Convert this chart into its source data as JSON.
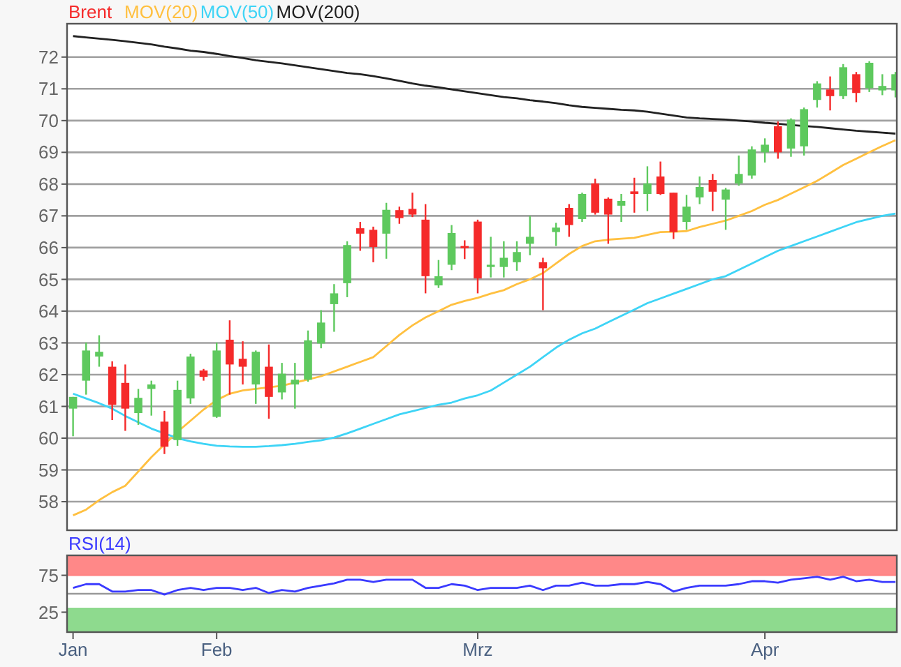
{
  "chart_data": [
    {
      "type": "candlestick",
      "categories": [
        null,
        null,
        null,
        null,
        null,
        null,
        null,
        null,
        null,
        null,
        null,
        null,
        null,
        null,
        null,
        null,
        null,
        null,
        null,
        null,
        null,
        null,
        null,
        null,
        null,
        null,
        null,
        null,
        null,
        null,
        null,
        null,
        null,
        null,
        null,
        null,
        null,
        null,
        null,
        null,
        null,
        null,
        null,
        null,
        null,
        null,
        null,
        null,
        null,
        null,
        null,
        null,
        null,
        null,
        null,
        null,
        null,
        null,
        null,
        null,
        null,
        null,
        null,
        null
      ],
      "ylim": [
        57.1,
        73.05
      ],
      "yticks": [
        58,
        59,
        60,
        61,
        62,
        63,
        64,
        65,
        66,
        67,
        68,
        69,
        70,
        71,
        72
      ],
      "grid": "y",
      "tick_labels": "y",
      "legend": "top left",
      "series": [
        {
          "name": "Brent",
          "ohlc": [
            [
              60.93,
              61.3,
              60.06,
              61.3
            ],
            [
              61.81,
              63.01,
              61.37,
              62.76
            ],
            [
              62.57,
              63.24,
              62.25,
              62.72
            ],
            [
              62.25,
              62.42,
              60.57,
              61.05
            ],
            [
              61.74,
              62.32,
              60.23,
              60.93
            ],
            [
              60.79,
              61.55,
              60.42,
              61.27
            ],
            [
              61.55,
              61.81,
              60.71,
              61.69
            ],
            [
              60.52,
              60.86,
              59.5,
              59.73
            ],
            [
              59.94,
              61.81,
              59.76,
              61.52
            ],
            [
              61.25,
              62.66,
              61.08,
              62.57
            ],
            [
              62.13,
              62.18,
              61.81,
              61.93
            ],
            [
              60.67,
              63.01,
              60.64,
              62.76
            ],
            [
              63.1,
              63.71,
              61.37,
              62.32
            ],
            [
              62.5,
              63.05,
              61.69,
              62.25
            ],
            [
              61.69,
              62.76,
              61.08,
              62.72
            ],
            [
              62.25,
              62.95,
              60.61,
              61.3
            ],
            [
              61.44,
              62.37,
              61.22,
              62.03
            ],
            [
              61.69,
              62.37,
              60.93,
              61.84
            ],
            [
              61.84,
              63.39,
              61.78,
              63.08
            ],
            [
              62.98,
              64.03,
              62.83,
              63.64
            ],
            [
              64.22,
              64.85,
              63.35,
              64.56
            ],
            [
              64.88,
              66.2,
              64.44,
              66.08
            ],
            [
              66.61,
              66.81,
              65.9,
              66.44
            ],
            [
              66.56,
              66.66,
              65.54,
              66.02
            ],
            [
              66.44,
              67.41,
              65.65,
              67.19
            ],
            [
              67.18,
              67.29,
              66.75,
              66.93
            ],
            [
              67.22,
              67.73,
              66.96,
              67.04
            ],
            [
              66.88,
              67.37,
              64.56,
              65.1
            ],
            [
              64.81,
              65.61,
              64.73,
              65.1
            ],
            [
              65.46,
              66.71,
              65.29,
              66.46
            ],
            [
              66.05,
              66.23,
              65.64,
              65.98
            ],
            [
              66.82,
              66.88,
              64.56,
              65.03
            ],
            [
              65.39,
              66.34,
              65.06,
              65.46
            ],
            [
              65.39,
              66.2,
              65.06,
              65.68
            ],
            [
              65.54,
              66.2,
              65.27,
              65.86
            ],
            [
              66.12,
              67.0,
              65.76,
              66.34
            ],
            [
              65.54,
              65.68,
              64.03,
              65.35
            ],
            [
              66.49,
              66.78,
              66.05,
              66.63
            ],
            [
              67.25,
              67.37,
              66.34,
              66.71
            ],
            [
              66.9,
              67.73,
              66.81,
              67.69
            ],
            [
              68.02,
              68.17,
              67.04,
              67.1
            ],
            [
              67.54,
              67.58,
              66.12,
              67.04
            ],
            [
              67.32,
              67.69,
              66.81,
              67.47
            ],
            [
              67.77,
              68.2,
              67.1,
              67.69
            ],
            [
              67.69,
              68.56,
              67.15,
              68.02
            ],
            [
              68.24,
              68.71,
              67.66,
              67.69
            ],
            [
              67.73,
              67.73,
              66.27,
              66.49
            ],
            [
              66.81,
              67.66,
              66.56,
              67.29
            ],
            [
              67.58,
              68.24,
              67.37,
              67.91
            ],
            [
              68.13,
              68.32,
              67.15,
              67.76
            ],
            [
              67.51,
              67.88,
              66.56,
              67.83
            ],
            [
              68.02,
              68.9,
              67.95,
              68.32
            ],
            [
              68.27,
              69.19,
              68.17,
              69.09
            ],
            [
              69.0,
              69.44,
              68.68,
              69.24
            ],
            [
              69.82,
              69.97,
              68.8,
              69.0
            ],
            [
              69.12,
              70.07,
              68.86,
              70.03
            ],
            [
              69.19,
              70.41,
              68.9,
              70.36
            ],
            [
              70.65,
              71.24,
              70.41,
              71.17
            ],
            [
              70.98,
              71.39,
              70.32,
              70.77
            ],
            [
              70.77,
              71.78,
              70.68,
              71.68
            ],
            [
              71.46,
              71.53,
              70.58,
              70.87
            ],
            [
              71.02,
              71.87,
              70.9,
              71.82
            ],
            [
              70.95,
              71.46,
              70.8,
              71.09
            ],
            [
              70.95,
              71.53,
              70.73,
              71.46
            ]
          ],
          "colors": [
            "#5ec95e",
            "#5ec95e",
            "#5ec95e",
            "#f52a2a",
            "#f52a2a",
            "#5ec95e",
            "#5ec95e",
            "#f52a2a",
            "#5ec95e",
            "#5ec95e",
            "#f52a2a",
            "#5ec95e",
            "#f52a2a",
            "#f52a2a",
            "#5ec95e",
            "#f52a2a",
            "#5ec95e",
            "#5ec95e",
            "#5ec95e",
            "#5ec95e",
            "#5ec95e",
            "#5ec95e",
            "#f52a2a",
            "#f52a2a",
            "#5ec95e",
            "#f52a2a",
            "#f52a2a",
            "#f52a2a",
            "#5ec95e",
            "#5ec95e",
            "#f52a2a",
            "#f52a2a",
            "#5ec95e",
            "#5ec95e",
            "#5ec95e",
            "#5ec95e",
            "#f52a2a",
            "#5ec95e",
            "#f52a2a",
            "#5ec95e",
            "#f52a2a",
            "#f52a2a",
            "#5ec95e",
            "#f52a2a",
            "#5ec95e",
            "#f52a2a",
            "#f52a2a",
            "#5ec95e",
            "#5ec95e",
            "#f52a2a",
            "#5ec95e",
            "#5ec95e",
            "#5ec95e",
            "#5ec95e",
            "#f52a2a",
            "#5ec95e",
            "#5ec95e",
            "#5ec95e",
            "#f52a2a",
            "#5ec95e",
            "#f52a2a",
            "#5ec95e",
            "#5ec95e",
            "#5ec95e"
          ]
        },
        {
          "type": "line",
          "name": "MOV(20)",
          "color": "#ffc040",
          "values": [
            57.57,
            57.75,
            58.05,
            58.3,
            58.5,
            58.95,
            59.4,
            59.8,
            60.2,
            60.55,
            60.9,
            61.2,
            61.4,
            61.5,
            61.55,
            61.6,
            61.65,
            61.75,
            61.85,
            61.95,
            62.1,
            62.25,
            62.4,
            62.55,
            62.9,
            63.25,
            63.55,
            63.8,
            64.0,
            64.2,
            64.32,
            64.42,
            64.55,
            64.66,
            64.85,
            65.0,
            65.2,
            65.5,
            65.8,
            66.05,
            66.2,
            66.25,
            66.28,
            66.31,
            66.4,
            66.49,
            66.5,
            66.52,
            66.65,
            66.75,
            66.85,
            67.0,
            67.15,
            67.35,
            67.5,
            67.7,
            67.9,
            68.1,
            68.35,
            68.6,
            68.8,
            69.0,
            69.2,
            69.38
          ]
        },
        {
          "type": "line",
          "name": "MOV(50)",
          "color": "#3ed4f6",
          "values": [
            61.4,
            61.25,
            61.1,
            60.93,
            60.7,
            60.5,
            60.3,
            60.15,
            60.0,
            59.9,
            59.82,
            59.76,
            59.74,
            59.73,
            59.73,
            59.75,
            59.78,
            59.82,
            59.88,
            59.93,
            60.02,
            60.15,
            60.3,
            60.45,
            60.6,
            60.75,
            60.85,
            60.95,
            61.05,
            61.12,
            61.25,
            61.35,
            61.5,
            61.75,
            62.0,
            62.25,
            62.55,
            62.85,
            63.1,
            63.3,
            63.45,
            63.65,
            63.85,
            64.05,
            64.25,
            64.4,
            64.55,
            64.7,
            64.85,
            65.0,
            65.1,
            65.3,
            65.5,
            65.7,
            65.9,
            66.05,
            66.2,
            66.35,
            66.5,
            66.65,
            66.8,
            66.9,
            67.0,
            67.07
          ]
        },
        {
          "type": "line",
          "name": "MOV(200)",
          "color": "#222222",
          "values": [
            72.66,
            72.62,
            72.58,
            72.54,
            72.5,
            72.45,
            72.4,
            72.33,
            72.27,
            72.2,
            72.16,
            72.1,
            72.03,
            71.97,
            71.9,
            71.85,
            71.8,
            71.74,
            71.68,
            71.62,
            71.56,
            71.5,
            71.46,
            71.4,
            71.33,
            71.25,
            71.17,
            71.1,
            71.05,
            70.98,
            70.92,
            70.86,
            70.8,
            70.74,
            70.7,
            70.64,
            70.6,
            70.55,
            70.48,
            70.43,
            70.4,
            70.37,
            70.34,
            70.32,
            70.28,
            70.22,
            70.16,
            70.1,
            70.07,
            70.05,
            70.03,
            70.0,
            69.97,
            69.93,
            69.9,
            69.86,
            69.83,
            69.8,
            69.76,
            69.72,
            69.68,
            69.65,
            69.62,
            69.59
          ]
        }
      ]
    },
    {
      "type": "line",
      "categories": [
        "Jan",
        null,
        null,
        null,
        null,
        null,
        null,
        null,
        null,
        null,
        null,
        "Feb",
        null,
        null,
        null,
        null,
        null,
        null,
        null,
        null,
        null,
        null,
        null,
        null,
        null,
        null,
        null,
        null,
        null,
        null,
        null,
        "Mrz",
        null,
        null,
        null,
        null,
        null,
        null,
        null,
        null,
        null,
        null,
        null,
        null,
        null,
        null,
        null,
        null,
        null,
        null,
        null,
        null,
        null,
        "Apr",
        null,
        null,
        null,
        null,
        null,
        null,
        null,
        null,
        null,
        null
      ],
      "ylim": [
        -2,
        102
      ],
      "yticks": [
        25,
        75
      ],
      "legend": "top left",
      "bands": [
        {
          "axis": "y",
          "from": 75,
          "to": 102,
          "color": "#ff8282"
        },
        {
          "axis": "y",
          "from": -2,
          "to": 30,
          "color": "#88d888"
        }
      ],
      "ref_lines": [
        {
          "axis": "y",
          "value": 50,
          "color": "#999999"
        }
      ],
      "series": [
        {
          "name": "RSI(14)",
          "color": "#3a3aff",
          "values": [
            58,
            63,
            63,
            53,
            53,
            55,
            55,
            49,
            55,
            58,
            55,
            58,
            58,
            55,
            58,
            51,
            55,
            53,
            58,
            61,
            64,
            69,
            69,
            66,
            69,
            69,
            69,
            58,
            58,
            63,
            61,
            55,
            58,
            58,
            58,
            61,
            55,
            61,
            61,
            65,
            61,
            61,
            63,
            63,
            66,
            63,
            53,
            58,
            61,
            61,
            61,
            63,
            67,
            67,
            65,
            69,
            71,
            73,
            69,
            73,
            67,
            69,
            66,
            66
          ]
        }
      ]
    }
  ]
}
